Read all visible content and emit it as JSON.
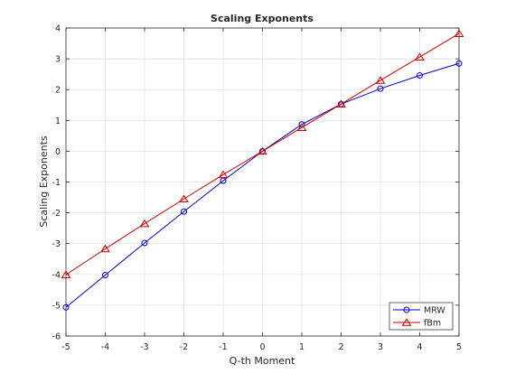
{
  "chart_data": {
    "type": "line",
    "title": "Scaling Exponents",
    "xlabel": "Q-th Moment",
    "ylabel": "Scaling Exponents",
    "xlim": [
      -5,
      5
    ],
    "ylim": [
      -6,
      4
    ],
    "xticks": [
      -5,
      -4,
      -3,
      -2,
      -1,
      0,
      1,
      2,
      3,
      4,
      5
    ],
    "yticks": [
      -6,
      -5,
      -4,
      -3,
      -2,
      -1,
      0,
      1,
      2,
      3,
      4
    ],
    "grid": true,
    "legend_position": "bottom-right",
    "x": [
      -5,
      -4,
      -3,
      -2,
      -1,
      0,
      1,
      2,
      3,
      4,
      5
    ],
    "series": [
      {
        "name": "MRW",
        "color": "#0000cc",
        "marker": "circle",
        "values": [
          -5.07,
          -4.02,
          -2.98,
          -1.96,
          -0.96,
          0.0,
          0.87,
          1.53,
          2.03,
          2.46,
          2.85
        ]
      },
      {
        "name": "fBm",
        "color": "#cc0000",
        "marker": "triangle",
        "values": [
          -4.01,
          -3.17,
          -2.35,
          -1.55,
          -0.76,
          0.0,
          0.77,
          1.53,
          2.3,
          3.06,
          3.82
        ]
      }
    ]
  }
}
